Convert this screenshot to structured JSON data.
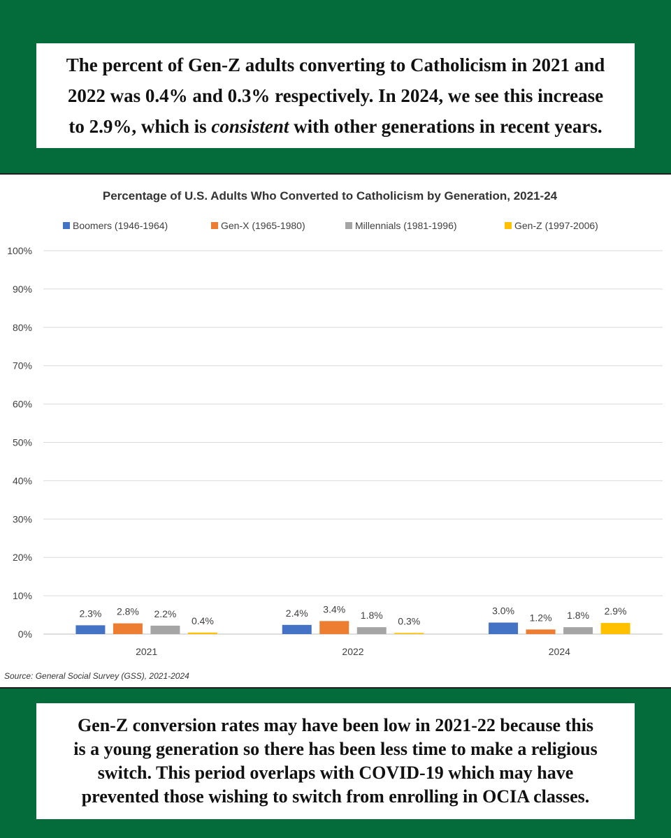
{
  "top_text": {
    "line1": "The percent of Gen-Z adults converting to Catholicism in 2021 and",
    "line2": "2022 was 0.4% and 0.3% respectively. In 2024, we see this increase",
    "line3_pre": "to 2.9%, which is ",
    "line3_em": "consistent",
    "line3_post": " with other generations in recent years."
  },
  "bottom_text": {
    "line1": "Gen-Z conversion rates may have been low in 2021-22 because this",
    "line2": "is a young generation so there has been less time to make a religious",
    "line3": "switch. This period overlaps with COVID-19 which may have",
    "line4": "prevented those wishing to switch from enrolling in OCIA classes."
  },
  "chart_data": {
    "type": "bar",
    "title": "Percentage of U.S. Adults Who Converted to Catholicism by Generation, 2021-24",
    "categories": [
      "2021",
      "2022",
      "2024"
    ],
    "series": [
      {
        "name": "Boomers (1946-1964)",
        "color": "#4472c4",
        "values": [
          2.3,
          2.4,
          3.0
        ],
        "labels": [
          "2.3%",
          "2.4%",
          "3.0%"
        ]
      },
      {
        "name": "Gen-X (1965-1980)",
        "color": "#ed7d31",
        "values": [
          2.8,
          3.4,
          1.2
        ],
        "labels": [
          "2.8%",
          "3.4%",
          "1.2%"
        ]
      },
      {
        "name": "Millennials (1981-1996)",
        "color": "#a5a5a5",
        "values": [
          2.2,
          1.8,
          1.8
        ],
        "labels": [
          "2.2%",
          "1.8%",
          "1.8%"
        ]
      },
      {
        "name": "Gen-Z (1997-2006)",
        "color": "#ffc000",
        "values": [
          0.4,
          0.3,
          2.9
        ],
        "labels": [
          "0.4%",
          "0.3%",
          "2.9%"
        ]
      }
    ],
    "yticks": [
      "0%",
      "10%",
      "20%",
      "30%",
      "40%",
      "50%",
      "60%",
      "70%",
      "80%",
      "90%",
      "100%"
    ],
    "ylim": [
      0,
      100
    ],
    "grid": true,
    "legend_position": "top",
    "source": "Source: General Social Survey (GSS), 2021-2024"
  }
}
